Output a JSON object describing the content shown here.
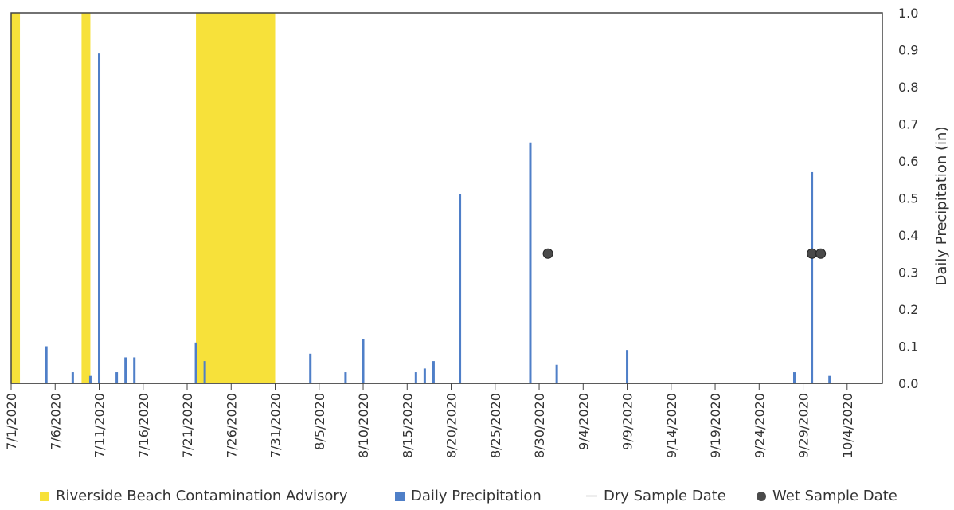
{
  "chart_data": {
    "type": "bar",
    "title": "",
    "xlabel": "",
    "ylabel": "Daily Precipitation (in)",
    "y_axis_side": "right",
    "ylim": [
      0,
      1.0
    ],
    "yticks": [
      "0.0",
      "0.1",
      "0.2",
      "0.3",
      "0.4",
      "0.5",
      "0.6",
      "0.7",
      "0.8",
      "0.9",
      "1.0"
    ],
    "xlim": [
      "2020-07-01",
      "2020-10-08"
    ],
    "xticks": [
      {
        "date": "2020-07-01",
        "label": "7/1/2020"
      },
      {
        "date": "2020-07-06",
        "label": "7/6/2020"
      },
      {
        "date": "2020-07-11",
        "label": "7/11/2020"
      },
      {
        "date": "2020-07-16",
        "label": "7/16/2020"
      },
      {
        "date": "2020-07-21",
        "label": "7/21/2020"
      },
      {
        "date": "2020-07-26",
        "label": "7/26/2020"
      },
      {
        "date": "2020-07-31",
        "label": "7/31/2020"
      },
      {
        "date": "2020-08-05",
        "label": "8/5/2020"
      },
      {
        "date": "2020-08-10",
        "label": "8/10/2020"
      },
      {
        "date": "2020-08-15",
        "label": "8/15/2020"
      },
      {
        "date": "2020-08-20",
        "label": "8/20/2020"
      },
      {
        "date": "2020-08-25",
        "label": "8/25/2020"
      },
      {
        "date": "2020-08-30",
        "label": "8/30/2020"
      },
      {
        "date": "2020-09-04",
        "label": "9/4/2020"
      },
      {
        "date": "2020-09-09",
        "label": "9/9/2020"
      },
      {
        "date": "2020-09-14",
        "label": "9/14/2020"
      },
      {
        "date": "2020-09-19",
        "label": "9/19/2020"
      },
      {
        "date": "2020-09-24",
        "label": "9/24/2020"
      },
      {
        "date": "2020-09-29",
        "label": "9/29/2020"
      },
      {
        "date": "2020-10-04",
        "label": "10/4/2020"
      }
    ],
    "advisories": {
      "name": "Riverside Beach Contamination Advisory",
      "color": "#f7e13a",
      "ranges": [
        {
          "start": "2020-07-01",
          "end": "2020-07-02"
        },
        {
          "start": "2020-07-09",
          "end": "2020-07-10"
        },
        {
          "start": "2020-07-22",
          "end": "2020-07-31"
        }
      ]
    },
    "series": [
      {
        "name": "Daily Precipitation",
        "color": "#4f7fc8",
        "points": [
          {
            "date": "2020-07-05",
            "value": 0.1
          },
          {
            "date": "2020-07-08",
            "value": 0.03
          },
          {
            "date": "2020-07-10",
            "value": 0.02
          },
          {
            "date": "2020-07-11",
            "value": 0.89
          },
          {
            "date": "2020-07-13",
            "value": 0.03
          },
          {
            "date": "2020-07-14",
            "value": 0.07
          },
          {
            "date": "2020-07-15",
            "value": 0.07
          },
          {
            "date": "2020-07-22",
            "value": 0.11
          },
          {
            "date": "2020-07-23",
            "value": 0.06
          },
          {
            "date": "2020-08-04",
            "value": 0.08
          },
          {
            "date": "2020-08-08",
            "value": 0.03
          },
          {
            "date": "2020-08-10",
            "value": 0.12
          },
          {
            "date": "2020-08-16",
            "value": 0.03
          },
          {
            "date": "2020-08-17",
            "value": 0.04
          },
          {
            "date": "2020-08-18",
            "value": 0.06
          },
          {
            "date": "2020-08-21",
            "value": 0.51
          },
          {
            "date": "2020-08-29",
            "value": 0.65
          },
          {
            "date": "2020-09-01",
            "value": 0.05
          },
          {
            "date": "2020-09-09",
            "value": 0.09
          },
          {
            "date": "2020-09-28",
            "value": 0.03
          },
          {
            "date": "2020-09-30",
            "value": 0.57
          },
          {
            "date": "2020-10-02",
            "value": 0.02
          }
        ]
      }
    ],
    "dry_samples": {
      "name": "Dry Sample Date",
      "color": "#eeeeee"
    },
    "wet_samples": {
      "name": "Wet Sample Date",
      "color": "#4a4a4a",
      "points": [
        {
          "date": "2020-08-31",
          "value": 0.35
        },
        {
          "date": "2020-09-30",
          "value": 0.35
        },
        {
          "date": "2020-10-01",
          "value": 0.35
        }
      ]
    },
    "legend_position": "bottom"
  },
  "legend": {
    "advisory": "Riverside Beach Contamination Advisory",
    "precip": "Daily Precipitation",
    "dry": "Dry Sample Date",
    "wet": "Wet Sample Date"
  }
}
